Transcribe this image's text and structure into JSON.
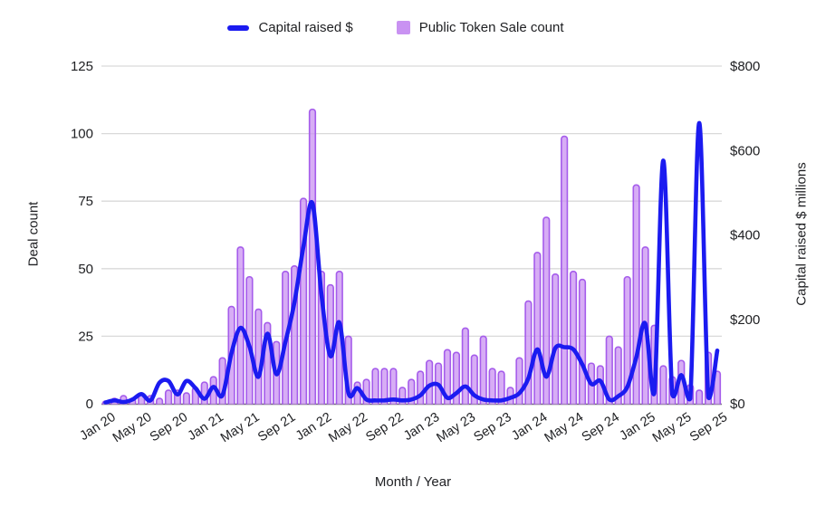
{
  "legend": {
    "items": [
      {
        "label": "Capital raised $",
        "type": "line",
        "color": "#1b1bf0"
      },
      {
        "label": "Public Token Sale count",
        "type": "square",
        "color": "#c992f2"
      }
    ]
  },
  "chart_data": {
    "type": "combo",
    "title": "",
    "xlabel": "Month / Year",
    "ylabel_left": "Deal count",
    "ylabel_right": "Capital raised $ millions",
    "grid": "horizontal",
    "y_left": {
      "min": 0,
      "max": 125,
      "tick_labels": [
        "0",
        "25",
        "50",
        "75",
        "100",
        "125"
      ],
      "tick_values": [
        0,
        25,
        50,
        75,
        100,
        125
      ]
    },
    "y_right": {
      "min": 0,
      "max": 800,
      "tick_labels": [
        "$0",
        "$200",
        "$400",
        "$600",
        "$800"
      ],
      "tick_values": [
        0,
        200,
        400,
        600,
        800
      ]
    },
    "x_tick_every": 4,
    "x_tick_labels": [
      "Jan 20",
      "May 20",
      "Sep 20",
      "Jan 21",
      "May 21",
      "Sep 21",
      "Jan 22",
      "May 22",
      "Sep 22",
      "Jan 23",
      "May 23",
      "Sep 23",
      "Jan 24",
      "May 24",
      "Sep 24",
      "Jan 25",
      "May 25",
      "Sep 25"
    ],
    "categories": [
      "Jan 20",
      "Feb 20",
      "Mar 20",
      "Apr 20",
      "May 20",
      "Jun 20",
      "Jul 20",
      "Aug 20",
      "Sep 20",
      "Oct 20",
      "Nov 20",
      "Dec 20",
      "Jan 21",
      "Feb 21",
      "Mar 21",
      "Apr 21",
      "May 21",
      "Jun 21",
      "Jul 21",
      "Aug 21",
      "Sep 21",
      "Oct 21",
      "Nov 21",
      "Dec 21",
      "Jan 22",
      "Feb 22",
      "Mar 22",
      "Apr 22",
      "May 22",
      "Jun 22",
      "Jul 22",
      "Aug 22",
      "Sep 22",
      "Oct 22",
      "Nov 22",
      "Dec 22",
      "Jan 23",
      "Feb 23",
      "Mar 23",
      "Apr 23",
      "May 23",
      "Jun 23",
      "Jul 23",
      "Aug 23",
      "Sep 23",
      "Oct 23",
      "Nov 23",
      "Dec 23",
      "Jan 24",
      "Feb 24",
      "Mar 24",
      "Apr 24",
      "May 24",
      "Jun 24",
      "Jul 24",
      "Aug 24",
      "Sep 24",
      "Oct 24",
      "Nov 24",
      "Dec 24",
      "Jan 25",
      "Feb 25",
      "Mar 25",
      "Apr 25",
      "May 25",
      "Jun 25",
      "Jul 25",
      "Aug 25",
      "Sep 25"
    ],
    "series": [
      {
        "name": "Public Token Sale count",
        "type": "bar",
        "axis": "left",
        "color": "#c992f2",
        "border_color": "#a55ceb",
        "values": [
          1,
          2,
          3,
          2,
          4,
          3,
          2,
          5,
          5,
          4,
          6,
          8,
          10,
          17,
          36,
          58,
          47,
          35,
          30,
          23,
          49,
          51,
          76,
          109,
          49,
          44,
          49,
          25,
          8,
          9,
          13,
          13,
          13,
          6,
          9,
          12,
          16,
          15,
          20,
          19,
          28,
          18,
          25,
          13,
          12,
          6,
          17,
          38,
          56,
          69,
          48,
          99,
          49,
          46,
          15,
          14,
          25,
          21,
          47,
          81,
          58,
          29,
          14,
          10,
          16,
          7,
          5,
          19,
          12
        ]
      },
      {
        "name": "Capital raised $",
        "type": "line",
        "axis": "right",
        "color": "#1b1bf0",
        "values": [
          3,
          8,
          4,
          10,
          23,
          8,
          50,
          54,
          22,
          54,
          37,
          12,
          40,
          20,
          120,
          180,
          136,
          64,
          166,
          70,
          147,
          240,
          372,
          475,
          260,
          113,
          192,
          26,
          37,
          10,
          8,
          8,
          10,
          8,
          10,
          20,
          43,
          45,
          14,
          25,
          41,
          20,
          10,
          8,
          8,
          14,
          25,
          60,
          129,
          64,
          132,
          134,
          129,
          93,
          47,
          54,
          10,
          18,
          40,
          110,
          190,
          25,
          576,
          22,
          68,
          12,
          665,
          15,
          126
        ]
      }
    ]
  }
}
